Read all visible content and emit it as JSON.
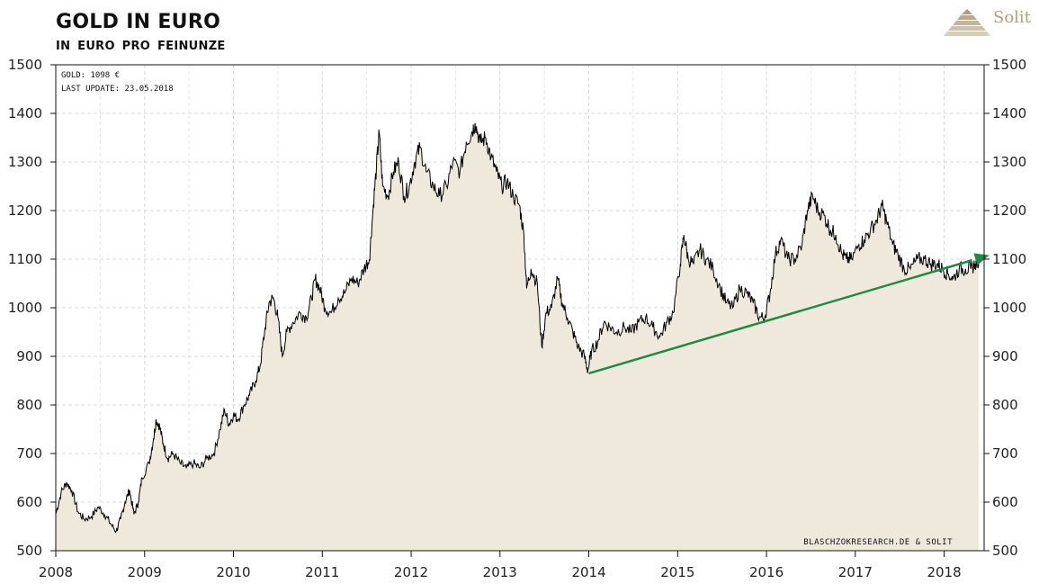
{
  "header": {
    "title": "GOLD IN EURO",
    "subtitle": "IN EURO PRO FEINUNZE"
  },
  "brand": {
    "logo_text": "Solit",
    "logo_color": "#b0a080"
  },
  "info_box": {
    "line1": "GOLD: 1098 €",
    "line2": "LAST UPDATE: 23.05.2018"
  },
  "credit": "BLASCHZOKRESEARCH.DE  & SOLIT",
  "colors": {
    "area_fill": "#efe9dc",
    "line": "#000000",
    "trend": "#1e8a45",
    "grid": "#d8d8d8"
  },
  "chart_data": {
    "type": "area",
    "title": "GOLD IN EURO",
    "subtitle": "IN EURO PRO FEINUNZE",
    "xlabel": "",
    "ylabel": "",
    "xlim": [
      2008.0,
      2018.45
    ],
    "ylim": [
      500,
      1500
    ],
    "x_ticks": [
      "2008",
      "2009",
      "2010",
      "2011",
      "2012",
      "2013",
      "2014",
      "2015",
      "2016",
      "2017",
      "2018"
    ],
    "y_ticks": [
      "500",
      "600",
      "700",
      "800",
      "900",
      "1000",
      "1100",
      "1200",
      "1300",
      "1400",
      "1500"
    ],
    "grid": true,
    "series": [
      {
        "values": [
          [
            2008.0,
            575
          ],
          [
            2008.06,
            620
          ],
          [
            2008.12,
            640
          ],
          [
            2008.18,
            625
          ],
          [
            2008.25,
            580
          ],
          [
            2008.32,
            565
          ],
          [
            2008.4,
            570
          ],
          [
            2008.48,
            590
          ],
          [
            2008.55,
            575
          ],
          [
            2008.62,
            555
          ],
          [
            2008.68,
            540
          ],
          [
            2008.73,
            565
          ],
          [
            2008.78,
            600
          ],
          [
            2008.83,
            625
          ],
          [
            2008.88,
            575
          ],
          [
            2008.93,
            600
          ],
          [
            2008.97,
            650
          ],
          [
            2009.05,
            680
          ],
          [
            2009.1,
            730
          ],
          [
            2009.13,
            770
          ],
          [
            2009.17,
            755
          ],
          [
            2009.21,
            720
          ],
          [
            2009.26,
            690
          ],
          [
            2009.32,
            700
          ],
          [
            2009.4,
            680
          ],
          [
            2009.47,
            670
          ],
          [
            2009.55,
            680
          ],
          [
            2009.62,
            670
          ],
          [
            2009.7,
            690
          ],
          [
            2009.78,
            700
          ],
          [
            2009.85,
            750
          ],
          [
            2009.9,
            790
          ],
          [
            2009.95,
            760
          ],
          [
            2010.0,
            780
          ],
          [
            2010.05,
            770
          ],
          [
            2010.12,
            800
          ],
          [
            2010.18,
            820
          ],
          [
            2010.25,
            850
          ],
          [
            2010.3,
            880
          ],
          [
            2010.35,
            950
          ],
          [
            2010.4,
            1010
          ],
          [
            2010.45,
            1020
          ],
          [
            2010.5,
            980
          ],
          [
            2010.55,
            900
          ],
          [
            2010.6,
            950
          ],
          [
            2010.67,
            970
          ],
          [
            2010.75,
            990
          ],
          [
            2010.82,
            980
          ],
          [
            2010.88,
            1020
          ],
          [
            2010.92,
            1060
          ],
          [
            2010.97,
            1040
          ],
          [
            2011.03,
            1000
          ],
          [
            2011.1,
            990
          ],
          [
            2011.18,
            1020
          ],
          [
            2011.25,
            1030
          ],
          [
            2011.33,
            1060
          ],
          [
            2011.4,
            1050
          ],
          [
            2011.47,
            1080
          ],
          [
            2011.53,
            1100
          ],
          [
            2011.57,
            1200
          ],
          [
            2011.61,
            1290
          ],
          [
            2011.64,
            1360
          ],
          [
            2011.68,
            1250
          ],
          [
            2011.74,
            1230
          ],
          [
            2011.8,
            1280
          ],
          [
            2011.86,
            1300
          ],
          [
            2011.92,
            1230
          ],
          [
            2011.98,
            1250
          ],
          [
            2012.04,
            1300
          ],
          [
            2012.1,
            1330
          ],
          [
            2012.17,
            1280
          ],
          [
            2012.25,
            1250
          ],
          [
            2012.32,
            1230
          ],
          [
            2012.4,
            1250
          ],
          [
            2012.47,
            1300
          ],
          [
            2012.55,
            1280
          ],
          [
            2012.62,
            1340
          ],
          [
            2012.68,
            1360
          ],
          [
            2012.72,
            1380
          ],
          [
            2012.78,
            1340
          ],
          [
            2012.84,
            1350
          ],
          [
            2012.9,
            1310
          ],
          [
            2012.96,
            1280
          ],
          [
            2013.02,
            1250
          ],
          [
            2013.08,
            1260
          ],
          [
            2013.15,
            1230
          ],
          [
            2013.22,
            1210
          ],
          [
            2013.27,
            1150
          ],
          [
            2013.3,
            1040
          ],
          [
            2013.35,
            1080
          ],
          [
            2013.42,
            1050
          ],
          [
            2013.47,
            920
          ],
          [
            2013.52,
            990
          ],
          [
            2013.58,
            1000
          ],
          [
            2013.65,
            1060
          ],
          [
            2013.7,
            1010
          ],
          [
            2013.76,
            980
          ],
          [
            2013.82,
            950
          ],
          [
            2013.88,
            920
          ],
          [
            2013.95,
            900
          ],
          [
            2013.99,
            870
          ],
          [
            2014.03,
            910
          ],
          [
            2014.1,
            930
          ],
          [
            2014.17,
            970
          ],
          [
            2014.24,
            960
          ],
          [
            2014.31,
            950
          ],
          [
            2014.4,
            960
          ],
          [
            2014.48,
            950
          ],
          [
            2014.56,
            970
          ],
          [
            2014.64,
            980
          ],
          [
            2014.72,
            960
          ],
          [
            2014.8,
            940
          ],
          [
            2014.88,
            970
          ],
          [
            2014.95,
            990
          ],
          [
            2015.03,
            1090
          ],
          [
            2015.07,
            1150
          ],
          [
            2015.12,
            1100
          ],
          [
            2015.18,
            1090
          ],
          [
            2015.25,
            1120
          ],
          [
            2015.32,
            1100
          ],
          [
            2015.4,
            1080
          ],
          [
            2015.48,
            1040
          ],
          [
            2015.55,
            1010
          ],
          [
            2015.62,
            1000
          ],
          [
            2015.7,
            1040
          ],
          [
            2015.78,
            1030
          ],
          [
            2015.85,
            1010
          ],
          [
            2015.92,
            980
          ],
          [
            2015.98,
            980
          ],
          [
            2016.04,
            1030
          ],
          [
            2016.1,
            1110
          ],
          [
            2016.16,
            1140
          ],
          [
            2016.24,
            1100
          ],
          [
            2016.32,
            1100
          ],
          [
            2016.4,
            1130
          ],
          [
            2016.46,
            1200
          ],
          [
            2016.52,
            1230
          ],
          [
            2016.58,
            1200
          ],
          [
            2016.65,
            1190
          ],
          [
            2016.72,
            1160
          ],
          [
            2016.78,
            1150
          ],
          [
            2016.85,
            1110
          ],
          [
            2016.9,
            1100
          ],
          [
            2016.96,
            1100
          ],
          [
            2017.04,
            1130
          ],
          [
            2017.1,
            1140
          ],
          [
            2017.17,
            1160
          ],
          [
            2017.24,
            1180
          ],
          [
            2017.3,
            1210
          ],
          [
            2017.35,
            1180
          ],
          [
            2017.42,
            1130
          ],
          [
            2017.48,
            1110
          ],
          [
            2017.55,
            1080
          ],
          [
            2017.62,
            1080
          ],
          [
            2017.7,
            1100
          ],
          [
            2017.78,
            1100
          ],
          [
            2017.85,
            1090
          ],
          [
            2017.92,
            1090
          ],
          [
            2017.98,
            1080
          ],
          [
            2018.04,
            1070
          ],
          [
            2018.1,
            1060
          ],
          [
            2018.17,
            1080
          ],
          [
            2018.24,
            1080
          ],
          [
            2018.3,
            1080
          ],
          [
            2018.35,
            1090
          ],
          [
            2018.39,
            1098
          ]
        ]
      }
    ],
    "trendline": {
      "from": [
        2014.0,
        865
      ],
      "to": [
        2018.45,
        1105
      ]
    },
    "annotations": [
      "GOLD: 1098 €",
      "LAST UPDATE: 23.05.2018",
      "BLASCHZOKRESEARCH.DE  & SOLIT"
    ]
  }
}
